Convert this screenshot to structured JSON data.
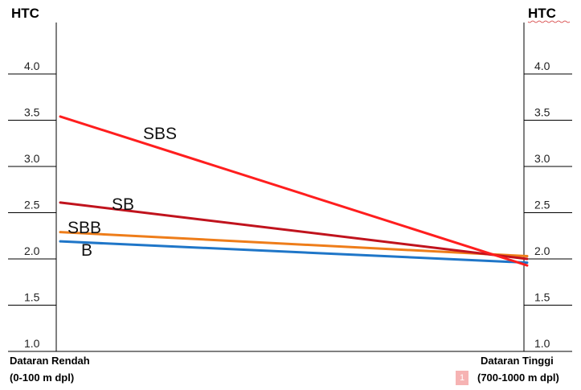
{
  "chart_data": {
    "type": "line",
    "ylabel_left": "HTC",
    "ylabel_right": "HTC",
    "ylim": [
      1.0,
      4.5
    ],
    "y_ticks": [
      "1.0",
      "1.5",
      "2.0",
      "2.5",
      "3.0",
      "3.5",
      "4.0"
    ],
    "x_categories": [
      {
        "name": "Dataran Rendah",
        "range": "(0-100 m dpl)"
      },
      {
        "name": "Dataran Tinggi",
        "range": "(700-1000 m dpl)"
      }
    ],
    "series": [
      {
        "name": "SBS",
        "values": [
          3.54,
          1.93
        ],
        "color": "#ff1e1e"
      },
      {
        "name": "SB",
        "values": [
          2.61,
          2.0
        ],
        "color": "#c0131d"
      },
      {
        "name": "SBB",
        "values": [
          2.29,
          2.03
        ],
        "color": "#ee7d1a"
      },
      {
        "name": "B",
        "values": [
          2.19,
          1.96
        ],
        "color": "#1f76c8"
      }
    ]
  },
  "comment_marker": "1"
}
